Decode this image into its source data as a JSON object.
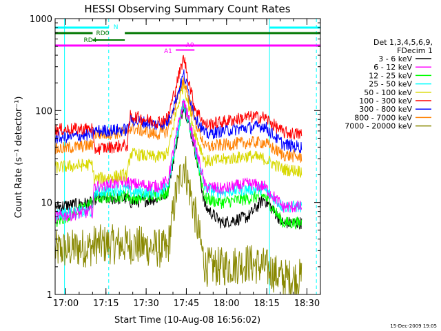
{
  "chart_data": {
    "type": "line",
    "title": "HESSI Observing Summary Count Rates",
    "xlabel": "Start Time (10-Aug-08 16:56:02)",
    "ylabel": "Count Rate (s⁻¹ detector⁻¹)",
    "y_scale": "log",
    "ylim": [
      1,
      1000
    ],
    "xlim_minutes": [
      0,
      99
    ],
    "x_tick_labels": [
      "17:00",
      "17:15",
      "17:30",
      "17:45",
      "18:00",
      "18:15",
      "18:30"
    ],
    "x_tick_minutes": [
      3.97,
      18.97,
      33.97,
      48.97,
      63.97,
      78.97,
      93.97
    ],
    "y_tick_labels": [
      "1",
      "10",
      "100",
      "1000"
    ],
    "y_tick_values": [
      1,
      10,
      100,
      1000
    ],
    "timestamp": "15-Dec-2009 19:05",
    "legend_header": [
      "Det 1,3,4,5,6,9,",
      "FDecim 1"
    ],
    "series": [
      {
        "name": "3 - 6 keV",
        "color": "#000000",
        "x": [
          0,
          14,
          14.5,
          27,
          28,
          38,
          42,
          45,
          48,
          52,
          56,
          62,
          72,
          78,
          85,
          92
        ],
        "y": [
          9,
          10,
          11,
          11,
          10,
          11,
          13,
          40,
          120,
          40,
          9,
          6,
          7,
          11,
          6,
          6
        ]
      },
      {
        "name": "6 - 12 keV",
        "color": "#ff00ff",
        "x": [
          0,
          14,
          14.5,
          27,
          28,
          38,
          42,
          45,
          48,
          52,
          56,
          62,
          72,
          78,
          85,
          92
        ],
        "y": [
          7,
          8,
          15,
          17,
          16,
          15,
          17,
          50,
          130,
          45,
          15,
          14,
          16,
          15,
          9,
          9
        ]
      },
      {
        "name": "12 - 25 keV",
        "color": "#00ff00",
        "x": [
          0,
          14,
          14.5,
          27,
          28,
          38,
          42,
          45,
          48,
          52,
          56,
          62,
          72,
          78,
          85,
          92
        ],
        "y": [
          6,
          10,
          11,
          12,
          11,
          12,
          13,
          45,
          125,
          40,
          11,
          10,
          11,
          12,
          6,
          6
        ]
      },
      {
        "name": "25 - 50 keV",
        "color": "#00ffff",
        "x": [
          0,
          14,
          14.5,
          27,
          28,
          38,
          42,
          45,
          48,
          52,
          56,
          62,
          72,
          78,
          85,
          92
        ],
        "y": [
          7.5,
          8,
          13,
          14,
          13,
          13,
          15,
          45,
          120,
          40,
          14,
          13,
          14,
          14,
          9,
          9
        ]
      },
      {
        "name": "50 - 100 keV",
        "color": "#d8d800",
        "x": [
          0,
          14,
          14.5,
          27,
          28,
          38,
          42,
          45,
          48,
          52,
          56,
          62,
          72,
          78,
          85,
          92
        ],
        "y": [
          24,
          26,
          18,
          20,
          34,
          31,
          34,
          90,
          200,
          60,
          28,
          29,
          32,
          30,
          23,
          22
        ]
      },
      {
        "name": "100 - 300 keV",
        "color": "#ff0000",
        "x": [
          0,
          14,
          14.5,
          27,
          28,
          38,
          42,
          45,
          48,
          52,
          56,
          62,
          72,
          78,
          85,
          92
        ],
        "y": [
          62,
          64,
          38,
          42,
          88,
          75,
          82,
          180,
          380,
          110,
          70,
          75,
          85,
          85,
          58,
          55
        ]
      },
      {
        "name": "300 - 800 keV",
        "color": "#0000ff",
        "x": [
          0,
          14,
          14.5,
          27,
          28,
          38,
          42,
          45,
          48,
          52,
          56,
          62,
          72,
          78,
          85,
          92
        ],
        "y": [
          50,
          55,
          60,
          62,
          80,
          70,
          75,
          130,
          250,
          90,
          55,
          60,
          65,
          68,
          43,
          40
        ]
      },
      {
        "name": "800 - 7000 keV",
        "color": "#ff8000",
        "x": [
          0,
          14,
          14.5,
          27,
          28,
          38,
          42,
          45,
          48,
          52,
          56,
          62,
          72,
          78,
          85,
          92
        ],
        "y": [
          38,
          42,
          55,
          58,
          65,
          55,
          60,
          120,
          220,
          80,
          40,
          42,
          45,
          45,
          33,
          31
        ]
      },
      {
        "name": "7000 - 20000 keV",
        "color": "#888800",
        "x": [
          0,
          14,
          14.5,
          27,
          28,
          38,
          42,
          45,
          48,
          52,
          56,
          62,
          72,
          78,
          85,
          92
        ],
        "y": [
          3,
          3.3,
          3.5,
          3.5,
          3.5,
          3.2,
          3,
          12,
          27,
          8,
          2,
          2,
          2.2,
          2,
          1.5,
          1.5
        ]
      }
    ],
    "bands": [
      {
        "label": "N",
        "color": "#00ffff",
        "segments": [
          [
            0,
            20
          ],
          [
            80,
            99
          ]
        ]
      },
      {
        "label": "RD0",
        "color": "#007700",
        "segments": [
          [
            0,
            14
          ],
          [
            26,
            99
          ]
        ]
      },
      {
        "label": "RD4",
        "color": "#007700",
        "segments": [
          [
            14,
            26
          ]
        ]
      },
      {
        "label": "A0",
        "color": "#ff00ff",
        "segments": [
          [
            0,
            99
          ]
        ]
      },
      {
        "label": "A1",
        "color": "#ff00ff",
        "segments": [
          [
            45,
            52
          ]
        ]
      }
    ]
  }
}
